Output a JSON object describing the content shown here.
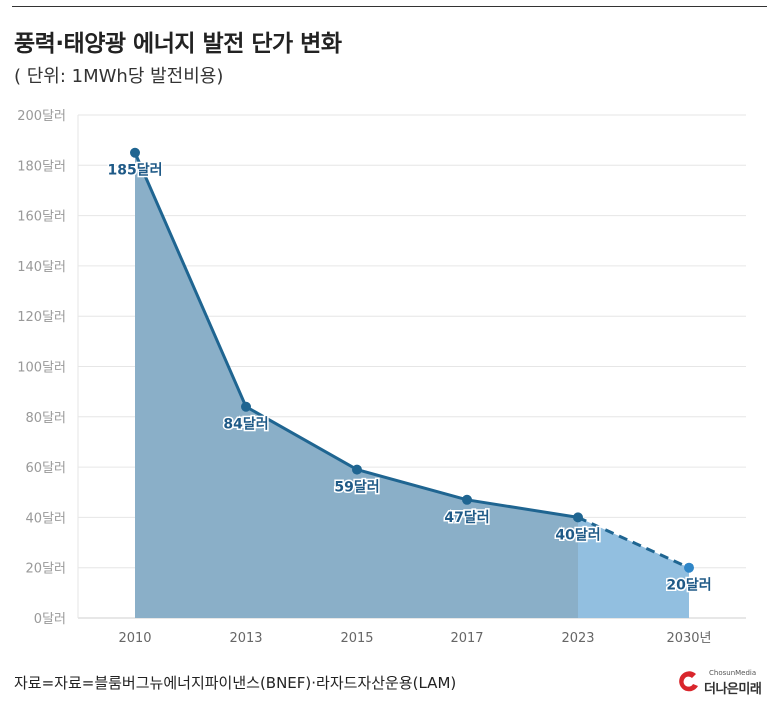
{
  "header": {
    "title": "풍력·태양광 에너지 발전 단가 변화",
    "subtitle": "( 단위: 1MWh당 발전비용)"
  },
  "footer": {
    "source": "자료=자료=블룸버그뉴에너지파이낸스(BNEF)·라자드자산운용(LAM)",
    "logo_small": "ChosunMedia",
    "logo_main": "더나은미래"
  },
  "colors": {
    "line": "#1f6591",
    "area_actual": "#8aafc8",
    "area_forecast": "#92bfe0",
    "point": "#1f6591",
    "point_forecast": "#2f86c8",
    "label": "#1f5a87",
    "grid": "#e6e6e6",
    "tick": "#999999",
    "logo_red": "#d9262c"
  },
  "chart_data": {
    "type": "area",
    "categories": [
      "2010",
      "2013",
      "2015",
      "2017",
      "2023",
      "2030년"
    ],
    "values": [
      185,
      84,
      59,
      47,
      40,
      20
    ],
    "data_labels": [
      "185달러",
      "84달러",
      "59달러",
      "47달러",
      "40달러",
      "20달러"
    ],
    "forecast_from_index": 4,
    "y_ticks": [
      0,
      20,
      40,
      60,
      80,
      100,
      120,
      140,
      160,
      180,
      200
    ],
    "y_tick_labels": [
      "0달러",
      "20달러",
      "40달러",
      "60달러",
      "80달러",
      "100달러",
      "120달러",
      "140달러",
      "160달러",
      "180달러",
      "200달러"
    ],
    "ylim": [
      0,
      200
    ],
    "grid": true,
    "legend": "none"
  }
}
